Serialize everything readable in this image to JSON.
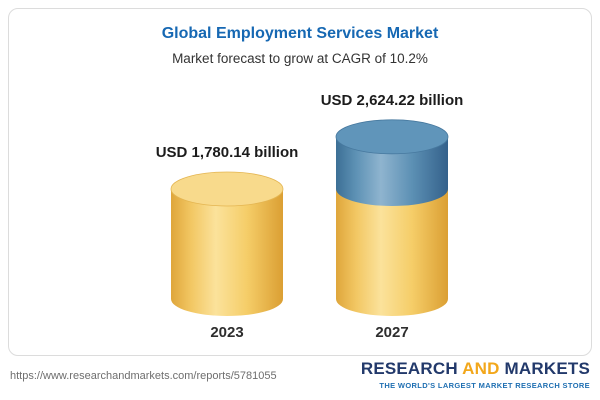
{
  "chart_data": {
    "type": "bar",
    "subtype": "cylinder-3d",
    "title": "Global Employment Services Market",
    "subtitle": "Market forecast to grow at CAGR of 10.2%",
    "cagr": "10.2%",
    "unit": "USD billion",
    "categories": [
      "2023",
      "2027"
    ],
    "values": [
      1780.14,
      2624.22
    ],
    "labels": [
      "USD 1,780.14 billion",
      "USD 2,624.22 billion"
    ],
    "legend": "none",
    "grid": "off",
    "colors": {
      "base_segment": "#F5CD68",
      "growth_segment": "#5C90B4",
      "title_blue": "#1668B3"
    },
    "notes": "2027 bar = 2023 base value in yellow plus growth segment in blue stacked on top"
  },
  "footer": {
    "url": "https://www.researchandmarkets.com/reports/5781055",
    "logo": {
      "part1": "RESEARCH",
      "part2": "AND",
      "part3": "MARKETS",
      "tagline": "THE WORLD'S LARGEST MARKET RESEARCH STORE"
    }
  }
}
